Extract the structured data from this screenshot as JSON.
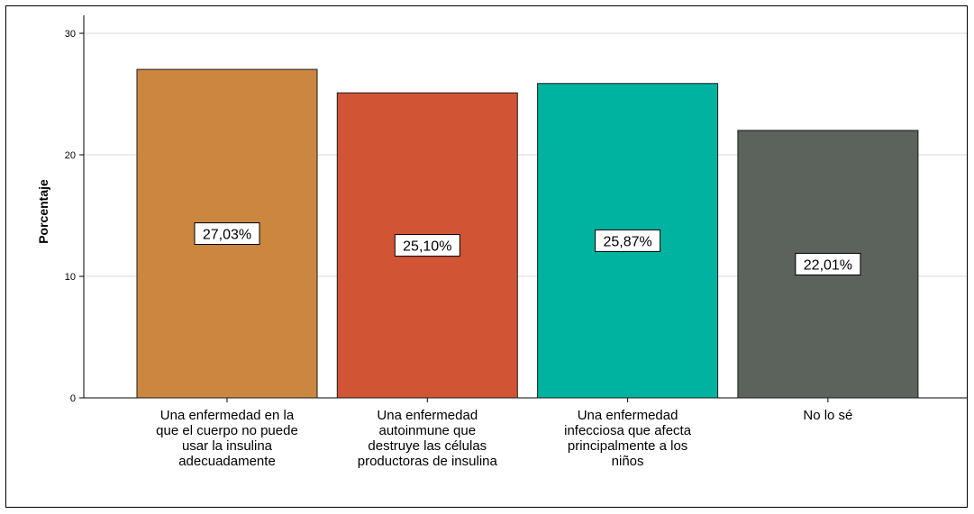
{
  "chart_data": {
    "type": "bar",
    "ylabel": "Porcentaje",
    "xlabel": "",
    "ylim": [
      0,
      30
    ],
    "yticks": [
      0,
      10,
      20,
      30
    ],
    "grid": true,
    "categories": [
      [
        "Una enfermedad en la",
        "que el cuerpo no puede",
        "usar la insulina",
        "adecuadamente"
      ],
      [
        "Una enfermedad",
        "autoinmune que",
        "destruye las células",
        "productoras de insulina"
      ],
      [
        "Una enfermedad",
        "infecciosa que afecta",
        "principalmente a los",
        "niños"
      ],
      [
        "No lo sé"
      ]
    ],
    "values": [
      27.03,
      25.1,
      25.87,
      22.01
    ],
    "data_labels": [
      "27,03%",
      "25,10%",
      "25,87%",
      "22,01%"
    ],
    "colors": [
      "#CB8740",
      "#D15535",
      "#00B3A0",
      "#5B635C"
    ]
  }
}
